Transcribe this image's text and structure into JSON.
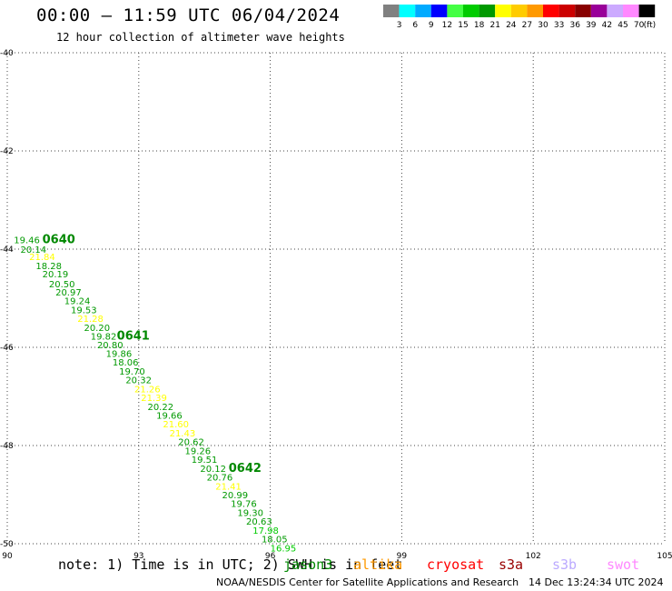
{
  "header": {
    "title": "00:00 – 11:59 UTC 06/04/2024",
    "subtitle": "12 hour collection of altimeter wave heights"
  },
  "color_scale": {
    "unit": "(ft)",
    "bins": [
      {
        "label": "3",
        "color": "#808080"
      },
      {
        "label": "6",
        "color": "#00ffff"
      },
      {
        "label": "9",
        "color": "#00aaff"
      },
      {
        "label": "12",
        "color": "#0000ff"
      },
      {
        "label": "15",
        "color": "#44ff44"
      },
      {
        "label": "18",
        "color": "#00cc00"
      },
      {
        "label": "21",
        "color": "#009900"
      },
      {
        "label": "24",
        "color": "#ffff00"
      },
      {
        "label": "27",
        "color": "#ffcc00"
      },
      {
        "label": "30",
        "color": "#ff9900"
      },
      {
        "label": "33",
        "color": "#ff0000"
      },
      {
        "label": "36",
        "color": "#cc0000"
      },
      {
        "label": "39",
        "color": "#880000"
      },
      {
        "label": "42",
        "color": "#990099"
      },
      {
        "label": "45",
        "color": "#ccaaff"
      },
      {
        "label": "70",
        "color": "#ff88ff"
      },
      {
        "label": "",
        "color": "#000000"
      }
    ]
  },
  "chart_data": {
    "type": "scatter",
    "title": "00:00 – 11:59 UTC 06/04/2024",
    "xlim": [
      90,
      105
    ],
    "ylim": [
      -50,
      -40
    ],
    "x_ticks": [
      90,
      93,
      96,
      99,
      102,
      105
    ],
    "y_ticks": [
      -40,
      -42,
      -44,
      -46,
      -48,
      -50
    ],
    "grid": true,
    "series": [
      {
        "name": "jason3",
        "points": [
          {
            "x": 90.15,
            "y": -43.81,
            "v": 19.46
          },
          {
            "x": 90.3,
            "y": -44.0,
            "v": 20.14
          },
          {
            "x": 90.5,
            "y": -44.15,
            "v": 21.84
          },
          {
            "x": 90.65,
            "y": -44.33,
            "v": 18.28
          },
          {
            "x": 90.8,
            "y": -44.5,
            "v": 20.19
          },
          {
            "x": 90.95,
            "y": -44.7,
            "v": 20.5
          },
          {
            "x": 91.1,
            "y": -44.87,
            "v": 20.97
          },
          {
            "x": 91.3,
            "y": -45.05,
            "v": 19.24
          },
          {
            "x": 91.45,
            "y": -45.23,
            "v": 19.53
          },
          {
            "x": 91.6,
            "y": -45.41,
            "v": 21.28
          },
          {
            "x": 91.75,
            "y": -45.59,
            "v": 20.2
          },
          {
            "x": 91.9,
            "y": -45.77,
            "v": 19.82
          },
          {
            "x": 92.05,
            "y": -45.94,
            "v": 20.8
          },
          {
            "x": 92.25,
            "y": -46.12,
            "v": 19.86
          },
          {
            "x": 92.4,
            "y": -46.3,
            "v": 18.06
          },
          {
            "x": 92.55,
            "y": -46.48,
            "v": 19.7
          },
          {
            "x": 92.7,
            "y": -46.66,
            "v": 20.32
          },
          {
            "x": 92.9,
            "y": -46.84,
            "v": 21.26
          },
          {
            "x": 93.05,
            "y": -47.02,
            "v": 21.39
          },
          {
            "x": 93.2,
            "y": -47.2,
            "v": 20.22
          },
          {
            "x": 93.4,
            "y": -47.38,
            "v": 19.66
          },
          {
            "x": 93.55,
            "y": -47.56,
            "v": 21.6
          },
          {
            "x": 93.7,
            "y": -47.74,
            "v": 21.43
          },
          {
            "x": 93.9,
            "y": -47.92,
            "v": 20.62
          },
          {
            "x": 94.05,
            "y": -48.1,
            "v": 19.26
          },
          {
            "x": 94.2,
            "y": -48.28,
            "v": 19.51
          },
          {
            "x": 94.4,
            "y": -48.46,
            "v": 20.12
          },
          {
            "x": 94.55,
            "y": -48.64,
            "v": 20.76
          },
          {
            "x": 94.75,
            "y": -48.82,
            "v": 21.41
          },
          {
            "x": 94.9,
            "y": -49.0,
            "v": 20.99
          },
          {
            "x": 95.1,
            "y": -49.18,
            "v": 19.76
          },
          {
            "x": 95.25,
            "y": -49.36,
            "v": 19.3
          },
          {
            "x": 95.45,
            "y": -49.54,
            "v": 20.63
          },
          {
            "x": 95.6,
            "y": -49.72,
            "v": 17.98
          },
          {
            "x": 95.8,
            "y": -49.9,
            "v": 18.05
          },
          {
            "x": 96.0,
            "y": -50.08,
            "v": 16.95
          }
        ]
      }
    ],
    "time_marks": [
      {
        "label": "0640",
        "x": 90.8,
        "y": -43.81
      },
      {
        "label": "0641",
        "x": 92.5,
        "y": -45.77
      },
      {
        "label": "0642",
        "x": 95.05,
        "y": -48.46
      }
    ]
  },
  "footer": {
    "note": "note:  1) Time is in UTC; 2) SWH is in feet",
    "satellites": [
      {
        "name": "jason3",
        "color": "#008800"
      },
      {
        "name": "altika",
        "color": "#ff9900"
      },
      {
        "name": "cryosat",
        "color": "#ff0000"
      },
      {
        "name": "s3a",
        "color": "#990000"
      },
      {
        "name": "s3b",
        "color": "#bbaaff"
      },
      {
        "name": "swot",
        "color": "#ff88ff"
      }
    ],
    "credit": "NOAA/NESDIS Center for Satellite Applications and Research",
    "timestamp": "14 Dec 13:24:34 UTC 2024"
  }
}
